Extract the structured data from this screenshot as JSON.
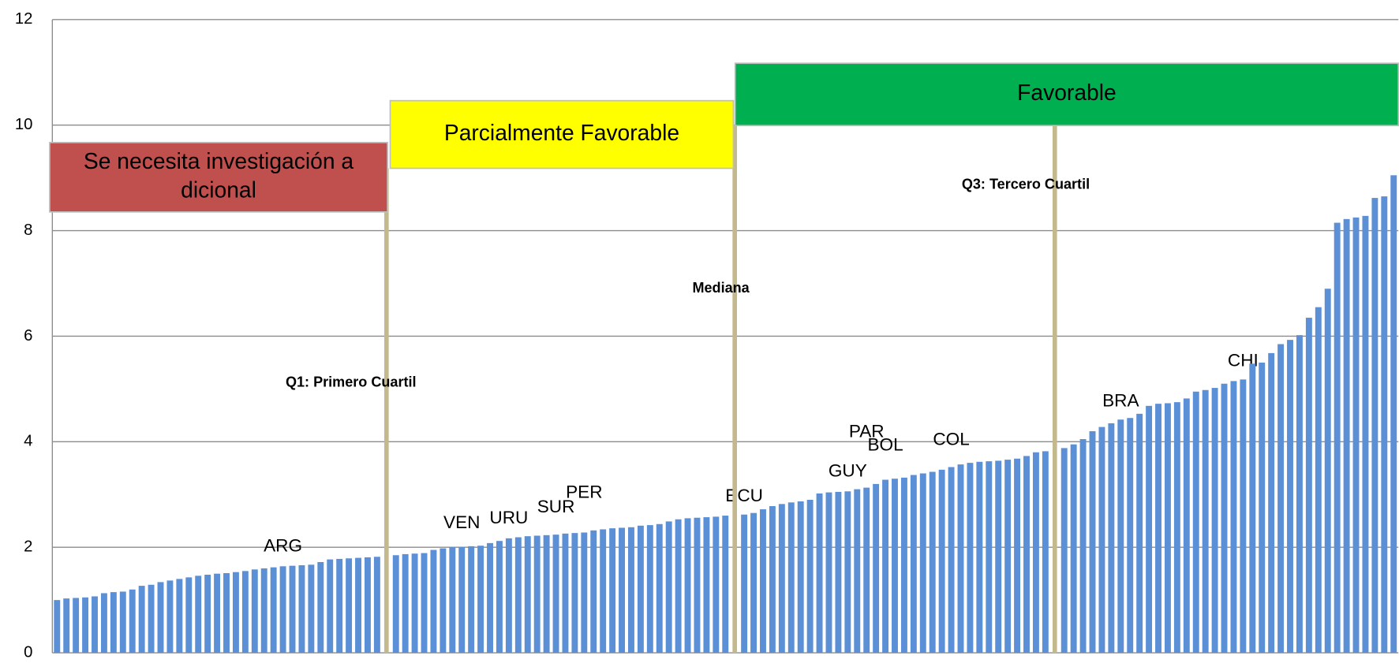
{
  "chart_data": {
    "type": "bar",
    "categories": [
      null,
      null,
      null,
      null,
      null,
      null,
      null,
      null,
      null,
      null,
      null,
      null,
      null,
      null,
      null,
      null,
      null,
      null,
      null,
      null,
      null,
      null,
      null,
      null,
      "ARG",
      null,
      null,
      null,
      null,
      null,
      null,
      null,
      null,
      null,
      null,
      null,
      null,
      null,
      null,
      null,
      null,
      null,
      null,
      "VEN",
      null,
      null,
      null,
      null,
      "URU",
      null,
      null,
      null,
      null,
      "SUR",
      null,
      null,
      "PER",
      null,
      null,
      null,
      null,
      null,
      null,
      null,
      null,
      null,
      null,
      null,
      null,
      null,
      null,
      null,
      null,
      "ECU",
      null,
      null,
      null,
      null,
      null,
      null,
      null,
      null,
      null,
      null,
      "GUY",
      null,
      "PAR",
      null,
      "BOL",
      null,
      null,
      null,
      null,
      null,
      null,
      "COL",
      null,
      null,
      null,
      null,
      null,
      null,
      null,
      null,
      null,
      null,
      null,
      null,
      null,
      null,
      null,
      null,
      null,
      "BRA",
      null,
      null,
      null,
      null,
      null,
      null,
      null,
      null,
      null,
      null,
      null,
      null,
      "CHI",
      null,
      null,
      null,
      null,
      null,
      null,
      null,
      null,
      null,
      null,
      null,
      null,
      null,
      null,
      null,
      null
    ],
    "values": [
      1.0,
      1.03,
      1.04,
      1.05,
      1.07,
      1.13,
      1.15,
      1.16,
      1.2,
      1.27,
      1.29,
      1.34,
      1.37,
      1.4,
      1.43,
      1.46,
      1.48,
      1.5,
      1.51,
      1.53,
      1.55,
      1.58,
      1.6,
      1.62,
      1.64,
      1.65,
      1.66,
      1.67,
      1.72,
      1.77,
      1.78,
      1.79,
      1.8,
      1.81,
      1.82,
      null,
      1.85,
      1.87,
      1.88,
      1.89,
      1.95,
      1.98,
      2.0,
      2.01,
      2.02,
      2.03,
      2.08,
      2.12,
      2.17,
      2.19,
      2.21,
      2.22,
      2.23,
      2.24,
      2.26,
      2.27,
      2.28,
      2.32,
      2.34,
      2.36,
      2.37,
      2.38,
      2.41,
      2.42,
      2.44,
      2.49,
      2.53,
      2.55,
      2.56,
      2.57,
      2.58,
      2.6,
      null,
      2.62,
      2.65,
      2.72,
      2.78,
      2.82,
      2.85,
      2.87,
      2.9,
      3.02,
      3.04,
      3.05,
      3.06,
      3.1,
      3.13,
      3.2,
      3.28,
      3.3,
      3.32,
      3.37,
      3.4,
      3.43,
      3.47,
      3.52,
      3.57,
      3.6,
      3.62,
      3.63,
      3.64,
      3.66,
      3.68,
      3.73,
      3.8,
      3.82,
      null,
      3.88,
      3.95,
      4.05,
      4.2,
      4.28,
      4.35,
      4.42,
      4.45,
      4.53,
      4.68,
      4.72,
      4.73,
      4.75,
      4.82,
      4.95,
      4.98,
      5.02,
      5.1,
      5.15,
      5.18,
      5.48,
      5.5,
      5.68,
      5.85,
      5.93,
      6.02,
      6.35,
      6.55,
      6.9,
      8.15,
      8.22,
      8.25,
      8.28,
      8.62,
      8.65,
      9.05
    ],
    "color": "#5b8fd6",
    "ylim": [
      0,
      12
    ],
    "yticks": [
      0,
      2,
      4,
      6,
      8,
      10,
      12
    ],
    "grid": true,
    "reference_lines": [
      {
        "label": "Q1: Primero Cuartil"
      },
      {
        "label": "Mediana"
      },
      {
        "label": "Q3: Tercero Cuartil"
      }
    ],
    "zones": [
      {
        "label": [
          "Se necesita investigación a",
          "dicional"
        ],
        "color": "#c0504d"
      },
      {
        "label": [
          "Parcialmente Favorable"
        ],
        "color": "#ffff00"
      },
      {
        "label": [
          "Favorable"
        ],
        "color": "#00b050"
      }
    ]
  }
}
